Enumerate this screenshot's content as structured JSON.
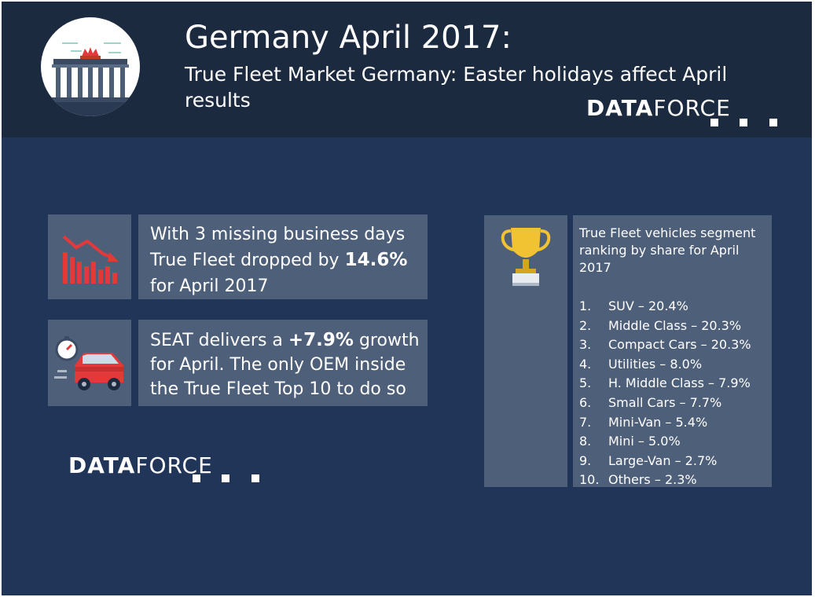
{
  "header": {
    "title": "Germany April 2017:",
    "subtitle": "True Fleet Market Germany: Easter holidays affect April results",
    "logo_icon": "brandenburg-gate-icon"
  },
  "brand": {
    "part1": "DATA",
    "part2": "FORCE"
  },
  "stats": [
    {
      "icon": "declining-bar-chart-icon",
      "text_before": "With 3 missing business days True Fleet dropped by ",
      "highlight": "14.6%",
      "text_after": " for April 2017"
    },
    {
      "icon": "car-stopwatch-icon",
      "text_before": "SEAT delivers a ",
      "highlight": "+7.9%",
      "text_after": " growth for April. The only OEM inside the True Fleet Top 10 to do so"
    }
  ],
  "ranking": {
    "icon": "trophy-icon",
    "title": "True Fleet vehicles segment ranking  by share for April 2017",
    "items": [
      {
        "num": "1.",
        "label": "SUV – 20.4%"
      },
      {
        "num": "2.",
        "label": "Middle Class – 20.3%"
      },
      {
        "num": "3.",
        "label": "Compact Cars – 20.3%"
      },
      {
        "num": "4.",
        "label": "Utilities – 8.0%"
      },
      {
        "num": "5.",
        "label": "H. Middle Class – 7.9%"
      },
      {
        "num": "6.",
        "label": "Small Cars – 7.7%"
      },
      {
        "num": "7.",
        "label": "Mini-Van – 5.4%"
      },
      {
        "num": "8.",
        "label": "Mini – 5.0%"
      },
      {
        "num": "9.",
        "label": "Large-Van – 2.7%"
      },
      {
        "num": "10.",
        "label": "Others – 2.3%"
      }
    ]
  },
  "colors": {
    "background": "#213559",
    "header": "#1c2a3f",
    "panel": "#4e5f79",
    "accent_red": "#e4393b",
    "trophy_gold": "#f1c232"
  }
}
